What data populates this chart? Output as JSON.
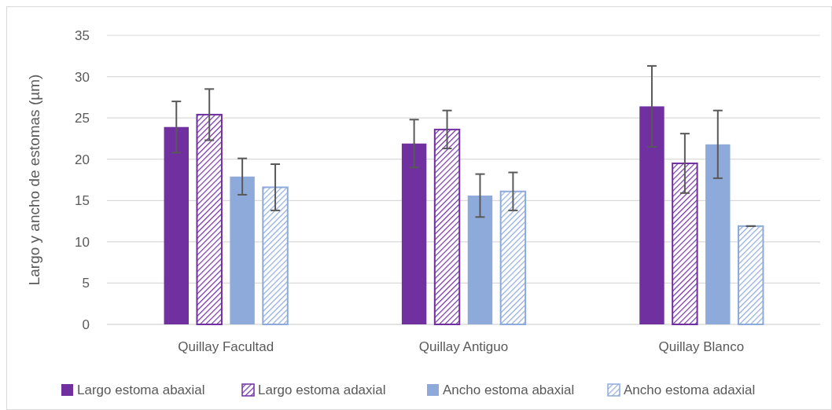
{
  "chart_data": {
    "type": "bar",
    "ylabel": "Largo y ancho de estomas (µm)",
    "categories": [
      "Quillay Facultad",
      "Quillay Antiguo",
      "Quillay Blanco"
    ],
    "series": [
      {
        "name": "Largo estoma abaxial",
        "color": "#7030a0",
        "values": [
          23.9,
          21.9,
          26.4
        ],
        "errors": [
          3.1,
          2.9,
          4.9
        ]
      },
      {
        "name": "Largo estoma adaxial",
        "color": "#7030a0",
        "values": [
          25.4,
          23.6,
          19.5
        ],
        "errors": [
          3.1,
          2.3,
          3.6
        ]
      },
      {
        "name": "Ancho estoma abaxial",
        "color": "#8eaadb",
        "values": [
          17.9,
          15.6,
          21.8
        ],
        "errors": [
          2.2,
          2.6,
          4.1
        ]
      },
      {
        "name": "Ancho estoma adaxial",
        "color": "#8eaadb",
        "values": [
          16.6,
          16.1,
          11.9
        ],
        "errors": [
          2.8,
          2.3,
          0
        ]
      }
    ],
    "ylim": [
      0,
      35
    ],
    "yticks": [
      0,
      5,
      10,
      15,
      20,
      25,
      30,
      35
    ],
    "grid": "y",
    "legend": "bottom"
  }
}
